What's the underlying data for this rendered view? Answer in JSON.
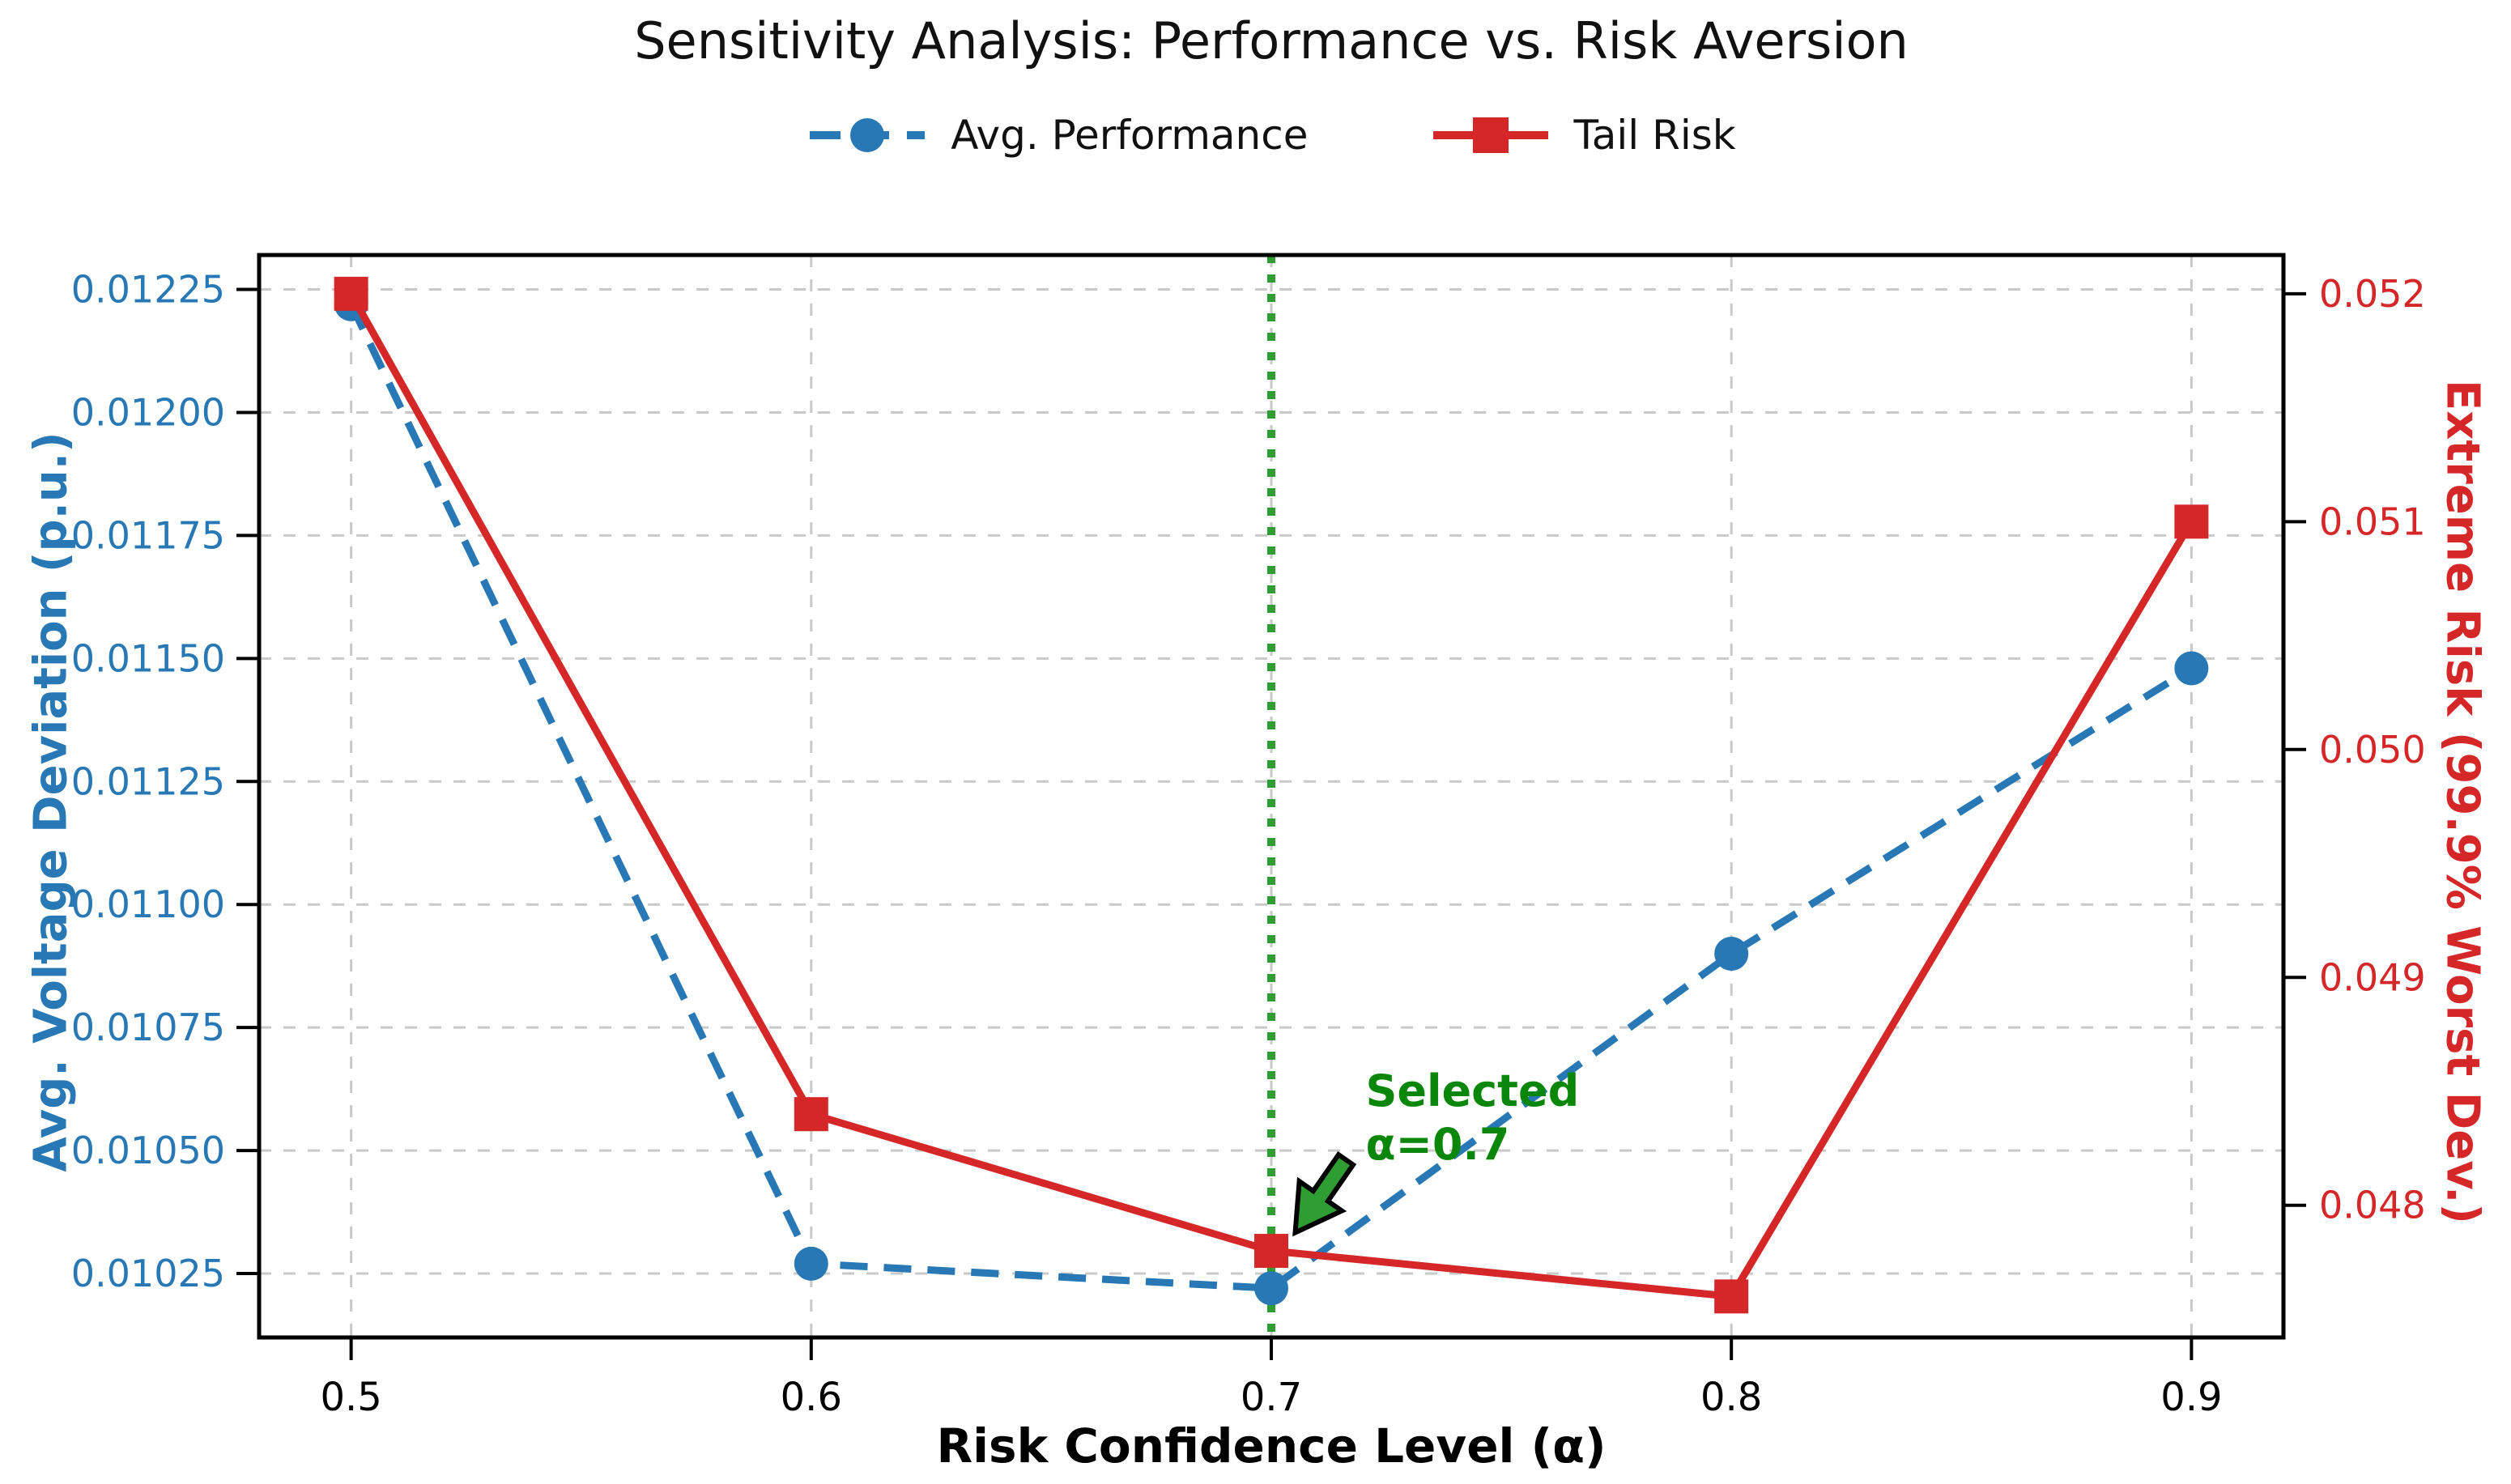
{
  "chart_data": {
    "type": "line",
    "title": "Sensitivity Analysis: Performance vs. Risk Aversion",
    "xlabel": "Risk Confidence Level (α)",
    "x": [
      0.5,
      0.6,
      0.7,
      0.8,
      0.9
    ],
    "x_tick_labels": [
      "0.5",
      "0.6",
      "0.7",
      "0.8",
      "0.9"
    ],
    "xlim": [
      0.48,
      0.92
    ],
    "grid": true,
    "legend_position": "top-center",
    "axes": {
      "left": {
        "label": "Avg. Voltage Deviation (p.u.)",
        "color": "#2878b5",
        "ylim": [
          0.01012,
          0.01232
        ],
        "ticks": [
          0.01225,
          0.012,
          0.01175,
          0.0115,
          0.01125,
          0.011,
          0.01075,
          0.0105,
          0.01025
        ],
        "tick_labels": [
          "0.01225",
          "0.01200",
          "0.01175",
          "0.01150",
          "0.01125",
          "0.01100",
          "0.01075",
          "0.01050",
          "0.01025"
        ]
      },
      "right": {
        "label": "Extreme Risk (99.9% Worst Dev.)",
        "color": "#d62728",
        "ylim": [
          0.04742,
          0.05217
        ],
        "ticks": [
          0.052,
          0.051,
          0.05,
          0.049,
          0.048
        ],
        "tick_labels": [
          "0.052",
          "0.051",
          "0.050",
          "0.049",
          "0.048"
        ]
      }
    },
    "series": [
      {
        "name": "Avg. Performance",
        "axis": "left",
        "color": "#2878b5",
        "line": "dashed",
        "marker": "circle",
        "values": [
          0.01222,
          0.01027,
          0.01022,
          0.0109,
          0.01148
        ]
      },
      {
        "name": "Tail Risk",
        "axis": "right",
        "color": "#d62728",
        "line": "solid",
        "marker": "square",
        "values": [
          0.052,
          0.0484,
          0.0478,
          0.0476,
          0.051
        ]
      }
    ],
    "annotation": {
      "vline_x": 0.7,
      "vline_color": "#2e9e32",
      "text_line1": "Selected",
      "text_line2": "α=0.7",
      "text_color": "#0a870a",
      "text_xy": [
        0.7205,
        0.0486
      ],
      "arrow_tail": [
        0.7162,
        0.0482
      ],
      "arrow_tip": [
        0.7052,
        0.04788
      ],
      "arrow_color": "#2e9e32"
    },
    "gridline_color": "#c9c9c9",
    "spine_color": "#000000"
  }
}
